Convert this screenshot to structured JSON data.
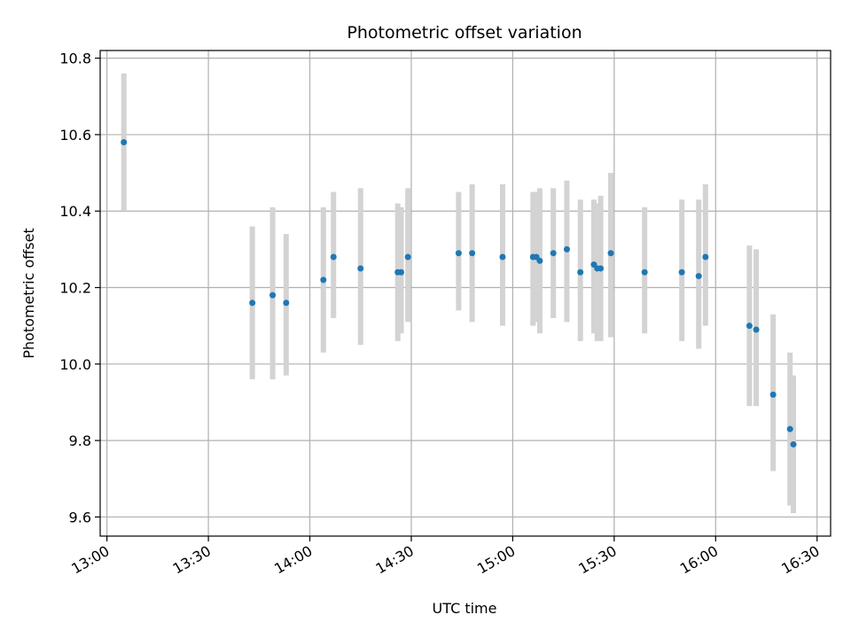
{
  "chart_data": {
    "type": "scatter",
    "title": "Photometric offset variation",
    "xlabel": "UTC time",
    "ylabel": "Photometric offset",
    "grid": true,
    "xlim": [
      "12:58",
      "16:34"
    ],
    "ylim": [
      9.55,
      10.82
    ],
    "x_ticks": [
      "13:00",
      "13:30",
      "14:00",
      "14:30",
      "15:00",
      "15:30",
      "16:00",
      "16:30"
    ],
    "y_ticks": [
      9.6,
      9.8,
      10.0,
      10.2,
      10.4,
      10.6,
      10.8
    ],
    "y_tick_labels": [
      "9.6",
      "9.8",
      "10.0",
      "10.2",
      "10.4",
      "10.6",
      "10.8"
    ],
    "colors": {
      "point": "#1f77b4",
      "errorbar": "#d3d3d3",
      "grid": "#b0b0b0"
    },
    "points": [
      {
        "x": "13:05",
        "y": 10.58,
        "lo": 10.4,
        "hi": 10.76
      },
      {
        "x": "13:43",
        "y": 10.16,
        "lo": 9.96,
        "hi": 10.36
      },
      {
        "x": "13:49",
        "y": 10.18,
        "lo": 9.96,
        "hi": 10.41
      },
      {
        "x": "13:53",
        "y": 10.16,
        "lo": 9.97,
        "hi": 10.34
      },
      {
        "x": "14:04",
        "y": 10.22,
        "lo": 10.03,
        "hi": 10.41
      },
      {
        "x": "14:07",
        "y": 10.28,
        "lo": 10.12,
        "hi": 10.45
      },
      {
        "x": "14:15",
        "y": 10.25,
        "lo": 10.05,
        "hi": 10.46
      },
      {
        "x": "14:26",
        "y": 10.24,
        "lo": 10.06,
        "hi": 10.42
      },
      {
        "x": "14:27",
        "y": 10.24,
        "lo": 10.08,
        "hi": 10.41
      },
      {
        "x": "14:29",
        "y": 10.28,
        "lo": 10.11,
        "hi": 10.46
      },
      {
        "x": "14:44",
        "y": 10.29,
        "lo": 10.14,
        "hi": 10.45
      },
      {
        "x": "14:48",
        "y": 10.29,
        "lo": 10.11,
        "hi": 10.47
      },
      {
        "x": "14:57",
        "y": 10.28,
        "lo": 10.1,
        "hi": 10.47
      },
      {
        "x": "15:06",
        "y": 10.28,
        "lo": 10.1,
        "hi": 10.45
      },
      {
        "x": "15:07",
        "y": 10.28,
        "lo": 10.11,
        "hi": 10.45
      },
      {
        "x": "15:08",
        "y": 10.27,
        "lo": 10.08,
        "hi": 10.46
      },
      {
        "x": "15:12",
        "y": 10.29,
        "lo": 10.12,
        "hi": 10.46
      },
      {
        "x": "15:16",
        "y": 10.3,
        "lo": 10.11,
        "hi": 10.48
      },
      {
        "x": "15:20",
        "y": 10.24,
        "lo": 10.06,
        "hi": 10.43
      },
      {
        "x": "15:24",
        "y": 10.26,
        "lo": 10.08,
        "hi": 10.43
      },
      {
        "x": "15:25",
        "y": 10.25,
        "lo": 10.06,
        "hi": 10.42
      },
      {
        "x": "15:26",
        "y": 10.25,
        "lo": 10.06,
        "hi": 10.44
      },
      {
        "x": "15:29",
        "y": 10.29,
        "lo": 10.07,
        "hi": 10.5
      },
      {
        "x": "15:39",
        "y": 10.24,
        "lo": 10.08,
        "hi": 10.41
      },
      {
        "x": "15:50",
        "y": 10.24,
        "lo": 10.06,
        "hi": 10.43
      },
      {
        "x": "15:55",
        "y": 10.23,
        "lo": 10.04,
        "hi": 10.43
      },
      {
        "x": "15:57",
        "y": 10.28,
        "lo": 10.1,
        "hi": 10.47
      },
      {
        "x": "16:10",
        "y": 10.1,
        "lo": 9.89,
        "hi": 10.31
      },
      {
        "x": "16:12",
        "y": 10.09,
        "lo": 9.89,
        "hi": 10.3
      },
      {
        "x": "16:17",
        "y": 9.92,
        "lo": 9.72,
        "hi": 10.13
      },
      {
        "x": "16:22",
        "y": 9.83,
        "lo": 9.63,
        "hi": 10.03
      },
      {
        "x": "16:23",
        "y": 9.79,
        "lo": 9.61,
        "hi": 9.97
      }
    ]
  }
}
